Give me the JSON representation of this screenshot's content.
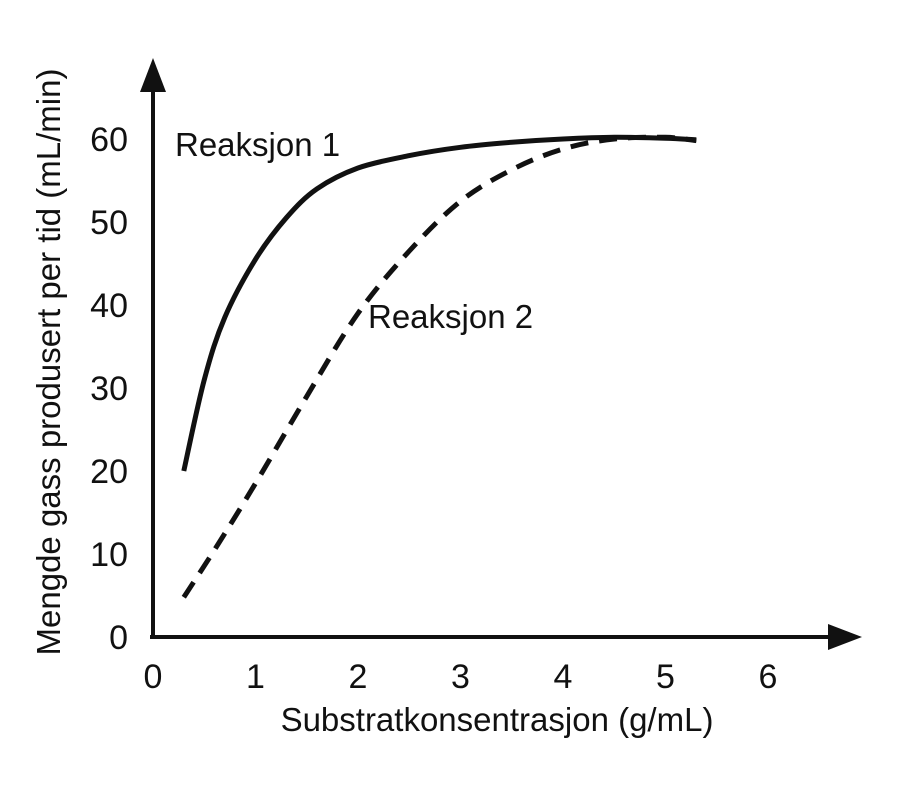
{
  "chart_data": {
    "type": "line",
    "xlabel": "Substratkonsentrasjon (g/mL)",
    "ylabel": "Mengde gass produsert per tid (mL/min)",
    "xlim": [
      0,
      6
    ],
    "ylim": [
      0,
      60
    ],
    "x_ticks": [
      "0",
      "1",
      "2",
      "3",
      "4",
      "5",
      "6"
    ],
    "y_ticks": [
      "0",
      "10",
      "20",
      "30",
      "40",
      "50",
      "60"
    ],
    "grid": false,
    "series": [
      {
        "name": "Reaksjon 1",
        "style": "solid",
        "color": "#111111",
        "points": [
          [
            0.3,
            20.0
          ],
          [
            0.5,
            31.0
          ],
          [
            0.7,
            38.5
          ],
          [
            1.0,
            45.5
          ],
          [
            1.3,
            50.5
          ],
          [
            1.6,
            54.0
          ],
          [
            2.0,
            56.5
          ],
          [
            2.5,
            58.0
          ],
          [
            3.0,
            59.0
          ],
          [
            3.5,
            59.6
          ],
          [
            4.0,
            60.0
          ],
          [
            4.5,
            60.2
          ],
          [
            5.0,
            60.1
          ],
          [
            5.3,
            59.9
          ]
        ]
      },
      {
        "name": "Reaksjon 2",
        "style": "dashed",
        "color": "#111111",
        "points": [
          [
            0.3,
            4.8
          ],
          [
            0.6,
            10.5
          ],
          [
            1.0,
            18.5
          ],
          [
            1.5,
            29.0
          ],
          [
            2.0,
            39.0
          ],
          [
            2.5,
            46.5
          ],
          [
            3.0,
            52.5
          ],
          [
            3.5,
            56.3
          ],
          [
            4.0,
            58.8
          ],
          [
            4.5,
            60.0
          ],
          [
            5.0,
            60.2
          ],
          [
            5.3,
            59.8
          ]
        ]
      }
    ]
  }
}
